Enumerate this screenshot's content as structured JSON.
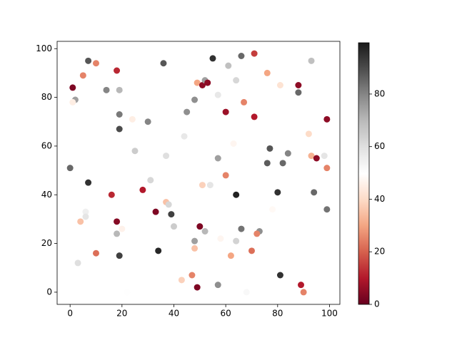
{
  "chart_data": {
    "type": "scatter",
    "x": [
      1,
      2,
      1,
      7,
      5,
      10,
      18,
      14,
      19,
      19,
      19,
      24,
      30,
      36,
      25,
      37,
      44,
      45,
      48,
      49,
      51,
      52,
      53,
      55,
      57,
      61,
      64,
      66,
      71,
      60,
      67,
      71,
      76,
      81,
      88,
      88,
      93,
      99,
      92,
      93,
      95,
      98,
      99,
      63,
      57,
      77,
      76,
      82,
      84,
      60,
      0,
      7,
      16,
      28,
      31,
      54,
      51,
      64,
      80,
      94,
      99,
      78,
      6,
      6,
      4,
      18,
      20,
      18,
      33,
      37,
      38,
      39,
      40,
      50,
      52,
      48,
      58,
      64,
      66,
      73,
      72,
      70,
      62,
      48,
      3,
      10,
      19,
      34,
      22,
      43,
      47,
      49,
      57,
      68,
      81,
      89,
      90
    ],
    "y": [
      84,
      79,
      78,
      95,
      89,
      94,
      91,
      83,
      83,
      73,
      67,
      71,
      70,
      94,
      58,
      56,
      64,
      74,
      79,
      86,
      85,
      87,
      86,
      96,
      81,
      93,
      87,
      97,
      98,
      74,
      78,
      72,
      90,
      85,
      85,
      82,
      95,
      71,
      65,
      56,
      55,
      56,
      51,
      61,
      55,
      59,
      53,
      53,
      57,
      48,
      51,
      45,
      40,
      42,
      46,
      44,
      44,
      40,
      41,
      41,
      34,
      34,
      33,
      31,
      29,
      29,
      26,
      24,
      33,
      37,
      36,
      32,
      27,
      27,
      25,
      21,
      22,
      21,
      26,
      25,
      24,
      17,
      15,
      18,
      12,
      16,
      15,
      17,
      0,
      5,
      7,
      2,
      3,
      0,
      7,
      3,
      0
    ],
    "c": [
      3,
      75,
      45,
      88,
      25,
      25,
      12,
      80,
      70,
      82,
      90,
      45,
      80,
      88,
      65,
      60,
      57,
      78,
      78,
      30,
      5,
      75,
      5,
      95,
      57,
      68,
      62,
      85,
      15,
      7,
      25,
      10,
      30,
      42,
      5,
      85,
      68,
      5,
      40,
      32,
      5,
      58,
      25,
      47,
      75,
      88,
      87,
      85,
      80,
      25,
      85,
      95,
      12,
      10,
      62,
      58,
      38,
      98,
      95,
      85,
      83,
      48,
      55,
      58,
      35,
      4,
      46,
      70,
      3,
      35,
      62,
      92,
      65,
      3,
      70,
      75,
      47,
      63,
      83,
      78,
      25,
      22,
      30,
      35,
      60,
      22,
      92,
      97,
      50,
      38,
      25,
      3,
      78,
      52,
      95,
      10,
      25
    ],
    "xlim": [
      -5,
      104
    ],
    "ylim": [
      -5,
      103
    ],
    "xticks": [
      0,
      20,
      40,
      60,
      80,
      100
    ],
    "yticks": [
      0,
      20,
      40,
      60,
      80,
      100
    ],
    "clim": [
      0,
      99.5
    ],
    "cticks": [
      0,
      20,
      40,
      60,
      80
    ],
    "colormap": [
      "#67001f",
      "#b2182b",
      "#d6604d",
      "#f4a582",
      "#fddbc7",
      "#ffffff",
      "#e0e0e0",
      "#bababa",
      "#878787",
      "#4d4d4d",
      "#1a1a1a"
    ]
  }
}
